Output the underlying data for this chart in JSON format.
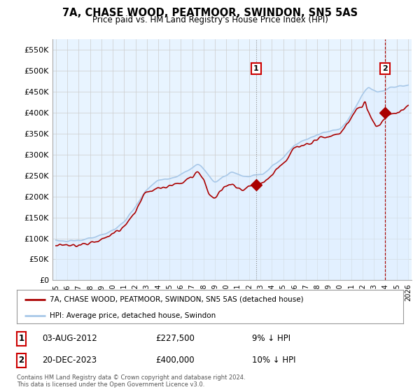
{
  "title": "7A, CHASE WOOD, PEATMOOR, SWINDON, SN5 5AS",
  "subtitle": "Price paid vs. HM Land Registry's House Price Index (HPI)",
  "ylabel_ticks": [
    "£0",
    "£50K",
    "£100K",
    "£150K",
    "£200K",
    "£250K",
    "£300K",
    "£350K",
    "£400K",
    "£450K",
    "£500K",
    "£550K"
  ],
  "ytick_values": [
    0,
    50000,
    100000,
    150000,
    200000,
    250000,
    300000,
    350000,
    400000,
    450000,
    500000,
    550000
  ],
  "ylim": [
    0,
    575000
  ],
  "hpi_color": "#a8c8e8",
  "hpi_fill_color": "#ddeeff",
  "price_color": "#aa0000",
  "sale1_year": 2012.625,
  "sale2_year": 2023.96,
  "sale1_price": 227500,
  "sale2_price": 400000,
  "legend_label1": "7A, CHASE WOOD, PEATMOOR, SWINDON, SN5 5AS (detached house)",
  "legend_label2": "HPI: Average price, detached house, Swindon",
  "table_row1": [
    "1",
    "03-AUG-2012",
    "£227,500",
    "9% ↓ HPI"
  ],
  "table_row2": [
    "2",
    "20-DEC-2023",
    "£400,000",
    "10% ↓ HPI"
  ],
  "footnote": "Contains HM Land Registry data © Crown copyright and database right 2024.\nThis data is licensed under the Open Government Licence v3.0.",
  "bg_color": "#ffffff",
  "grid_color": "#cccccc",
  "plot_bg": "#e8f4ff"
}
